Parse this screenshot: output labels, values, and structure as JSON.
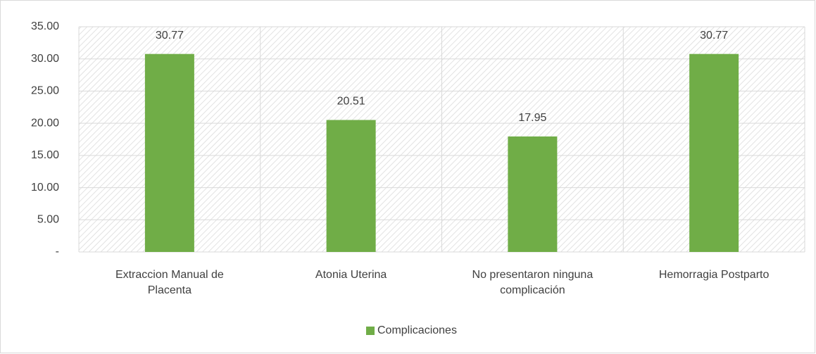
{
  "chart_data": {
    "type": "bar",
    "categories": [
      "Extraccion Manual de Placenta",
      "Atonia Uterina",
      "No presentaron ninguna complicación",
      "Hemorragia Postparto"
    ],
    "series": [
      {
        "name": "Complicaciones",
        "color": "#70ad47",
        "values": [
          30.77,
          20.51,
          17.95,
          30.77
        ]
      }
    ],
    "ylim": [
      0,
      35
    ],
    "yticks": [
      {
        "value": 0,
        "label": "-"
      },
      {
        "value": 5,
        "label": "5.00"
      },
      {
        "value": 10,
        "label": "10.00"
      },
      {
        "value": 15,
        "label": "15.00"
      },
      {
        "value": 20,
        "label": "20.00"
      },
      {
        "value": 25,
        "label": "25.00"
      },
      {
        "value": 30,
        "label": "30.00"
      },
      {
        "value": 35,
        "label": "35.00"
      }
    ],
    "grid": true,
    "legend": "bottom"
  }
}
